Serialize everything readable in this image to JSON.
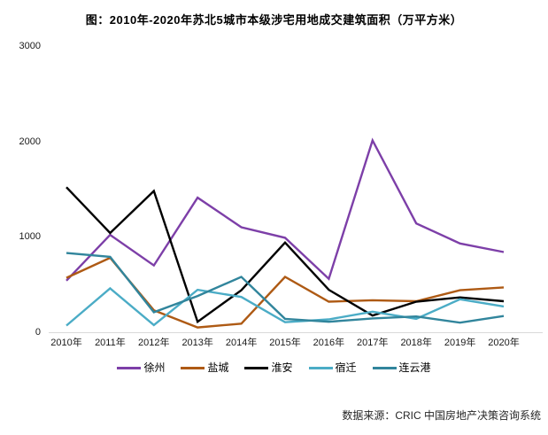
{
  "title": "图：2010年-2020年苏北5城市本级涉宅用地成交建筑面积（万平方米）",
  "source": "数据来源：CRIC 中国房地产决策咨询系统",
  "chart_data": {
    "type": "line",
    "categories": [
      "2010年",
      "2011年",
      "2012年",
      "2013年",
      "2014年",
      "2015年",
      "2016年",
      "2017年",
      "2018年",
      "2019年",
      "2020年"
    ],
    "series": [
      {
        "name": "徐州",
        "color": "#7D3FA8",
        "values": [
          540,
          1020,
          700,
          1410,
          1100,
          990,
          560,
          2010,
          1140,
          930,
          840
        ]
      },
      {
        "name": "盐城",
        "color": "#AE5A14",
        "values": [
          570,
          780,
          230,
          50,
          90,
          580,
          320,
          335,
          325,
          440,
          470
        ]
      },
      {
        "name": "淮安",
        "color": "#000000",
        "values": [
          1520,
          1040,
          1480,
          110,
          440,
          940,
          445,
          175,
          320,
          365,
          325
        ]
      },
      {
        "name": "宿迁",
        "color": "#4BACC6",
        "values": [
          70,
          460,
          75,
          445,
          370,
          105,
          135,
          215,
          140,
          345,
          270
        ]
      },
      {
        "name": "连云港",
        "color": "#31859C",
        "values": [
          830,
          790,
          210,
          380,
          580,
          140,
          110,
          145,
          165,
          100,
          170
        ]
      }
    ],
    "title": "图：2010年-2020年苏北5城市本级涉宅用地成交建筑面积（万平方米）",
    "xlabel": "",
    "ylabel": "",
    "ylim": [
      0,
      3000
    ],
    "y_ticks": [
      0,
      1000,
      2000,
      3000
    ],
    "grid": false,
    "legend_position": "bottom",
    "axis_line_color": "#D9D9D9"
  }
}
